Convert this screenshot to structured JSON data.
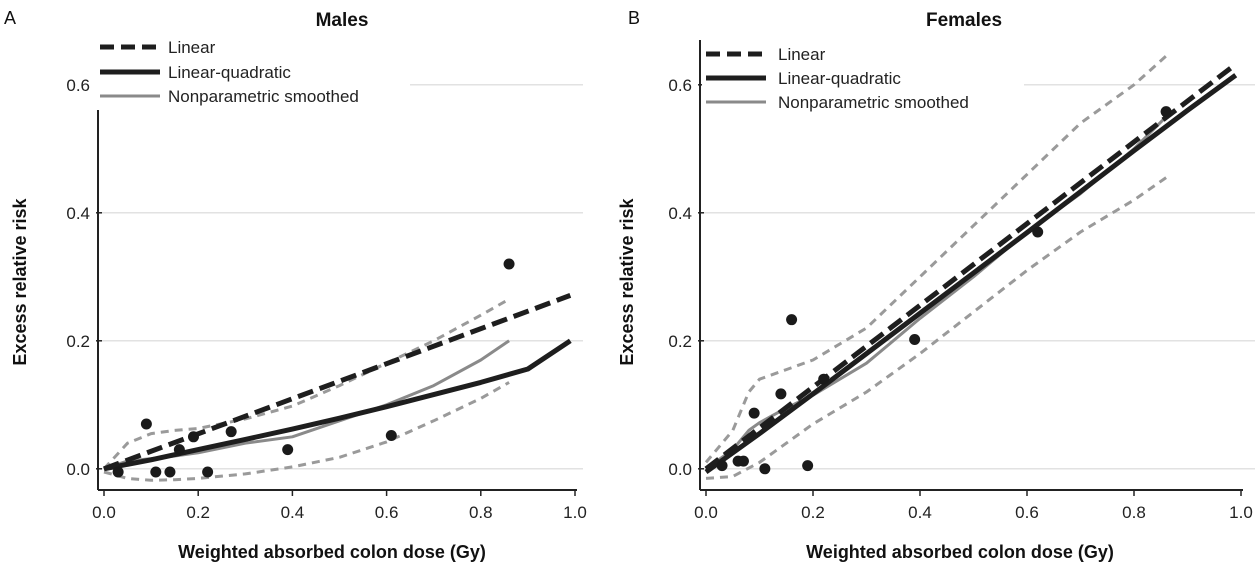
{
  "chart_data": [
    {
      "panel_letter": "A",
      "type": "line",
      "title": "Males",
      "xlabel": "Weighted absorbed colon dose (Gy)",
      "ylabel": "Excess relative risk",
      "xlim": [
        0,
        1.0
      ],
      "ylim": [
        -0.03,
        0.67
      ],
      "xticks": [
        "0.0",
        "0.2",
        "0.4",
        "0.6",
        "0.8",
        "1.0"
      ],
      "yticks": [
        "0.0",
        "0.2",
        "0.4",
        "0.6"
      ],
      "grid": "horizontal",
      "legend_position": "top-left",
      "legend": [
        "Linear",
        "Linear-quadratic",
        "Nonparametric smoothed"
      ],
      "series": [
        {
          "name": "Linear",
          "style": "dashed-thick",
          "color": "#1e1e1e",
          "x": [
            0.0,
            0.99
          ],
          "y": [
            0.0,
            0.271
          ]
        },
        {
          "name": "Linear-quadratic",
          "style": "solid-thick",
          "color": "#1e1e1e",
          "x": [
            0.0,
            0.1,
            0.2,
            0.3,
            0.4,
            0.5,
            0.6,
            0.7,
            0.8,
            0.9,
            0.99
          ],
          "y": [
            0.0,
            0.014,
            0.03,
            0.046,
            0.062,
            0.079,
            0.097,
            0.116,
            0.135,
            0.156,
            0.2
          ]
        },
        {
          "name": "Nonparametric smoothed",
          "style": "solid",
          "color": "#8a8a8a",
          "x": [
            0.0,
            0.05,
            0.1,
            0.15,
            0.2,
            0.3,
            0.4,
            0.5,
            0.6,
            0.7,
            0.8,
            0.86
          ],
          "y": [
            0.0,
            0.012,
            0.016,
            0.02,
            0.025,
            0.04,
            0.05,
            0.075,
            0.1,
            0.13,
            0.17,
            0.2
          ]
        },
        {
          "name": "",
          "style": "dashed-grey",
          "color": "#9a9a9a",
          "x": [
            0.0,
            0.05,
            0.1,
            0.15,
            0.2,
            0.3,
            0.4,
            0.5,
            0.6,
            0.7,
            0.8,
            0.86
          ],
          "y": [
            0.0,
            0.04,
            0.055,
            0.06,
            0.063,
            0.078,
            0.098,
            0.13,
            0.165,
            0.2,
            0.24,
            0.265
          ]
        },
        {
          "name": "",
          "style": "dashed-grey",
          "color": "#9a9a9a",
          "x": [
            0.0,
            0.05,
            0.1,
            0.15,
            0.2,
            0.3,
            0.4,
            0.5,
            0.6,
            0.7,
            0.8,
            0.86
          ],
          "y": [
            -0.005,
            -0.015,
            -0.018,
            -0.017,
            -0.015,
            -0.008,
            0.003,
            0.018,
            0.042,
            0.075,
            0.11,
            0.135
          ]
        }
      ],
      "points": {
        "x": [
          0.03,
          0.09,
          0.11,
          0.14,
          0.16,
          0.19,
          0.22,
          0.27,
          0.39,
          0.61,
          0.86
        ],
        "y": [
          -0.005,
          0.07,
          -0.005,
          -0.005,
          0.03,
          0.05,
          -0.005,
          0.058,
          0.03,
          0.052,
          0.32
        ]
      }
    },
    {
      "panel_letter": "B",
      "type": "line",
      "title": "Females",
      "xlabel": "Weighted absorbed colon dose (Gy)",
      "ylabel": "Excess relative risk",
      "xlim": [
        0,
        1.0
      ],
      "ylim": [
        -0.03,
        0.67
      ],
      "xticks": [
        "0.0",
        "0.2",
        "0.4",
        "0.6",
        "0.8",
        "1.0"
      ],
      "yticks": [
        "0.0",
        "0.2",
        "0.4",
        "0.6"
      ],
      "grid": "horizontal",
      "legend_position": "top-left",
      "legend": [
        "Linear",
        "Linear-quadratic",
        "Nonparametric smoothed"
      ],
      "series": [
        {
          "name": "Linear",
          "style": "dashed-thick",
          "color": "#1e1e1e",
          "x": [
            0.0,
            0.99
          ],
          "y": [
            0.0,
            0.632
          ]
        },
        {
          "name": "Linear-quadratic",
          "style": "solid-thick",
          "color": "#1e1e1e",
          "x": [
            0.0,
            0.1,
            0.2,
            0.3,
            0.4,
            0.5,
            0.6,
            0.7,
            0.8,
            0.9,
            0.99
          ],
          "y": [
            -0.005,
            0.055,
            0.117,
            0.18,
            0.243,
            0.306,
            0.369,
            0.433,
            0.497,
            0.56,
            0.615
          ]
        },
        {
          "name": "Nonparametric smoothed",
          "style": "solid",
          "color": "#8a8a8a",
          "x": [
            0.0,
            0.05,
            0.08,
            0.1,
            0.15,
            0.2,
            0.3,
            0.4,
            0.5,
            0.6,
            0.7,
            0.8,
            0.86
          ],
          "y": [
            0.0,
            0.03,
            0.06,
            0.072,
            0.095,
            0.115,
            0.165,
            0.235,
            0.3,
            0.37,
            0.43,
            0.5,
            0.55
          ]
        },
        {
          "name": "",
          "style": "dashed-grey",
          "color": "#9a9a9a",
          "x": [
            0.0,
            0.05,
            0.08,
            0.1,
            0.15,
            0.2,
            0.3,
            0.4,
            0.5,
            0.6,
            0.7,
            0.8,
            0.86
          ],
          "y": [
            0.01,
            0.06,
            0.12,
            0.14,
            0.155,
            0.17,
            0.22,
            0.3,
            0.38,
            0.46,
            0.54,
            0.6,
            0.645
          ]
        },
        {
          "name": "",
          "style": "dashed-grey",
          "color": "#9a9a9a",
          "x": [
            0.0,
            0.05,
            0.1,
            0.15,
            0.2,
            0.3,
            0.4,
            0.5,
            0.6,
            0.7,
            0.8,
            0.86
          ],
          "y": [
            -0.015,
            -0.012,
            0.01,
            0.04,
            0.07,
            0.12,
            0.18,
            0.245,
            0.31,
            0.37,
            0.42,
            0.455
          ]
        }
      ],
      "points": {
        "x": [
          0.03,
          0.06,
          0.07,
          0.09,
          0.11,
          0.14,
          0.16,
          0.19,
          0.22,
          0.39,
          0.62,
          0.86
        ],
        "y": [
          0.005,
          0.012,
          0.012,
          0.087,
          0.0,
          0.117,
          0.233,
          0.005,
          0.14,
          0.202,
          0.37,
          0.558
        ]
      }
    }
  ]
}
